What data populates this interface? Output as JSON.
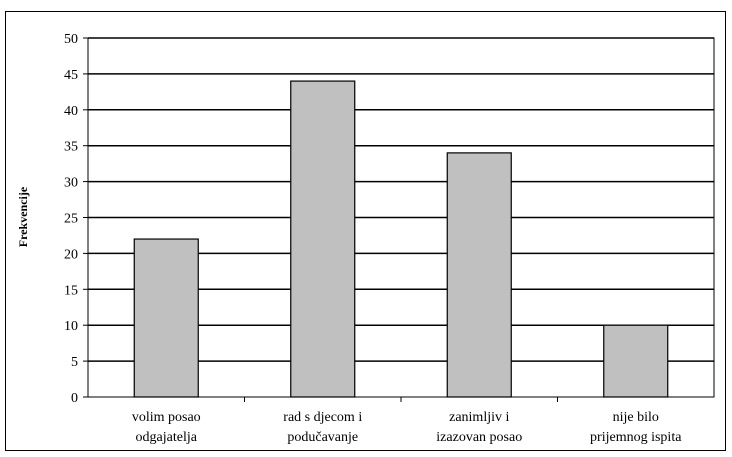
{
  "chart_data": {
    "type": "bar",
    "categories": [
      [
        "volim posao",
        "odgajatelja"
      ],
      [
        "rad s djecom i",
        "podučavanje"
      ],
      [
        "zanimljiv i",
        "izazovan posao"
      ],
      [
        "nije bilo",
        "prijemnog ispita"
      ]
    ],
    "values": [
      22,
      44,
      34,
      10
    ],
    "ylabel": "Frekvencije",
    "ylim": [
      0,
      50
    ],
    "yticks": [
      "0",
      "5",
      "10",
      "15",
      "20",
      "25",
      "30",
      "35",
      "40",
      "45",
      "50"
    ],
    "grid": true,
    "bar_color": "#c0c0c0",
    "bar_edge": "#000000"
  }
}
